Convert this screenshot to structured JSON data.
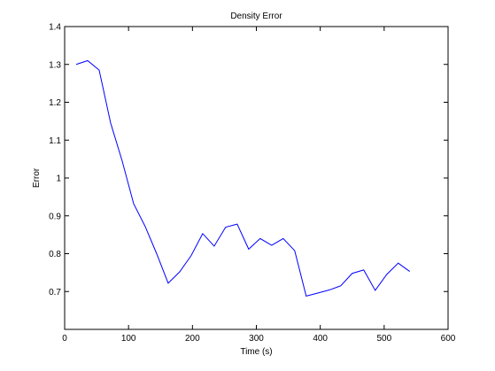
{
  "chart_data": {
    "type": "line",
    "title": "Density Error",
    "xlabel": "Time (s)",
    "ylabel": "Error",
    "xlim": [
      0,
      600
    ],
    "ylim": [
      0.6,
      1.4
    ],
    "xticks": [
      0,
      100,
      200,
      300,
      400,
      500,
      600
    ],
    "yticks": [
      0.7,
      0.8,
      0.9,
      1,
      1.1,
      1.2,
      1.3,
      1.4
    ],
    "xtick_labels": [
      "0",
      "100",
      "200",
      "300",
      "400",
      "500",
      "600"
    ],
    "ytick_labels": [
      "0.7",
      "0.8",
      "0.9",
      "1",
      "1.1",
      "1.2",
      "1.3",
      "1.4"
    ],
    "grid": false,
    "series": [
      {
        "color": "#0000ff",
        "x": [
          18,
          36,
          54,
          72,
          90,
          108,
          126,
          144,
          162,
          180,
          198,
          216,
          234,
          252,
          270,
          288,
          306,
          324,
          342,
          360,
          378,
          396,
          414,
          432,
          450,
          468,
          486,
          504,
          522,
          540
        ],
        "y": [
          1.3,
          1.31,
          1.285,
          1.145,
          1.045,
          0.932,
          0.872,
          0.8,
          0.722,
          0.752,
          0.795,
          0.853,
          0.82,
          0.87,
          0.878,
          0.812,
          0.84,
          0.822,
          0.84,
          0.808,
          0.688,
          0.696,
          0.704,
          0.715,
          0.748,
          0.757,
          0.703,
          0.745,
          0.775,
          0.753
        ]
      }
    ]
  }
}
